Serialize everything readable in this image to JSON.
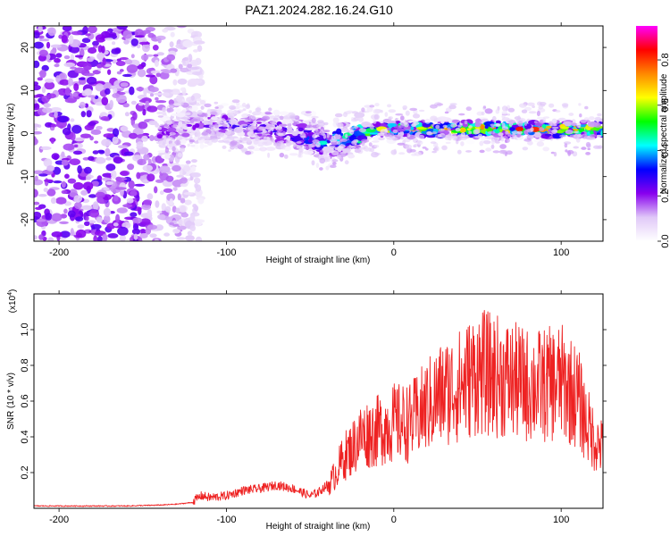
{
  "title": "PAZ1.2024.282.16.24.G10",
  "chart_data": [
    {
      "type": "heatmap",
      "xlabel": "Height of straight line (km)",
      "ylabel": "Frequency (Hz)",
      "xlim": [
        -215,
        125
      ],
      "ylim": [
        -25,
        25
      ],
      "xticks": [
        -200,
        -100,
        0,
        100
      ],
      "yticks": [
        -20,
        -10,
        0,
        10,
        20
      ],
      "colorbar": {
        "label": "Normalized spectral amplitude",
        "range": [
          0,
          0.95
        ],
        "ticks": [
          0.0,
          0.2,
          0.4,
          0.6,
          0.8
        ],
        "tick_labels": [
          "0.0",
          "0.2",
          "0.4",
          "0.6",
          "0.8"
        ],
        "colors": [
          "#ffffff",
          "#e0c8f8",
          "#8800ee",
          "#0000ff",
          "#00ffff",
          "#00ff00",
          "#ffff00",
          "#ff8800",
          "#ff0000",
          "#ff00ff"
        ]
      },
      "ridge": {
        "x": [
          -140,
          -120,
          -100,
          -80,
          -60,
          -50,
          -40,
          -35,
          -30,
          -20,
          -10,
          0,
          20,
          40,
          60,
          80,
          100,
          120
        ],
        "frequency": [
          0,
          2,
          2,
          1,
          0,
          -1,
          -3,
          -2,
          -1,
          0,
          1,
          1,
          1,
          1,
          1,
          1,
          1,
          1
        ],
        "amplitude": [
          0.2,
          0.2,
          0.25,
          0.25,
          0.3,
          0.35,
          0.4,
          0.4,
          0.45,
          0.55,
          0.6,
          0.6,
          0.65,
          0.7,
          0.75,
          0.75,
          0.7,
          0.65
        ]
      },
      "noise_region": {
        "x": [
          -215,
          -130
        ],
        "frequency": [
          -25,
          25
        ]
      }
    },
    {
      "type": "line",
      "xlabel": "Height of straight line (km)",
      "ylabel": "SNR (10 * v/v)",
      "y_multiplier": "(x10",
      "y_multiplier_exp": "4",
      "xlim": [
        -215,
        125
      ],
      "ylim": [
        0,
        1.2
      ],
      "xticks": [
        -200,
        -100,
        0,
        100
      ],
      "yticks": [
        0.2,
        0.4,
        0.6,
        0.8,
        1.0
      ],
      "ytick_labels": [
        "0.2",
        "0.4",
        "0.6",
        "0.8",
        "1.0"
      ],
      "color": "#ee2222",
      "series": [
        {
          "x": [
            -215,
            -200,
            -180,
            -160,
            -140,
            -130,
            -120,
            -115,
            -110,
            -100,
            -90,
            -80,
            -70,
            -60,
            -50,
            -45,
            -40,
            -35,
            -30,
            -25,
            -20,
            -15,
            -10,
            -5,
            0,
            10,
            20,
            30,
            40,
            50,
            60,
            70,
            80,
            90,
            100,
            110,
            115,
            120,
            125
          ],
          "y": [
            0.01,
            0.01,
            0.01,
            0.01,
            0.015,
            0.02,
            0.03,
            0.06,
            0.05,
            0.06,
            0.09,
            0.1,
            0.12,
            0.1,
            0.06,
            0.08,
            0.12,
            0.2,
            0.3,
            0.35,
            0.42,
            0.44,
            0.45,
            0.48,
            0.5,
            0.5,
            0.6,
            0.68,
            0.72,
            0.8,
            0.78,
            0.75,
            0.72,
            0.72,
            0.74,
            0.65,
            0.5,
            0.4,
            0.35
          ]
        }
      ]
    }
  ]
}
